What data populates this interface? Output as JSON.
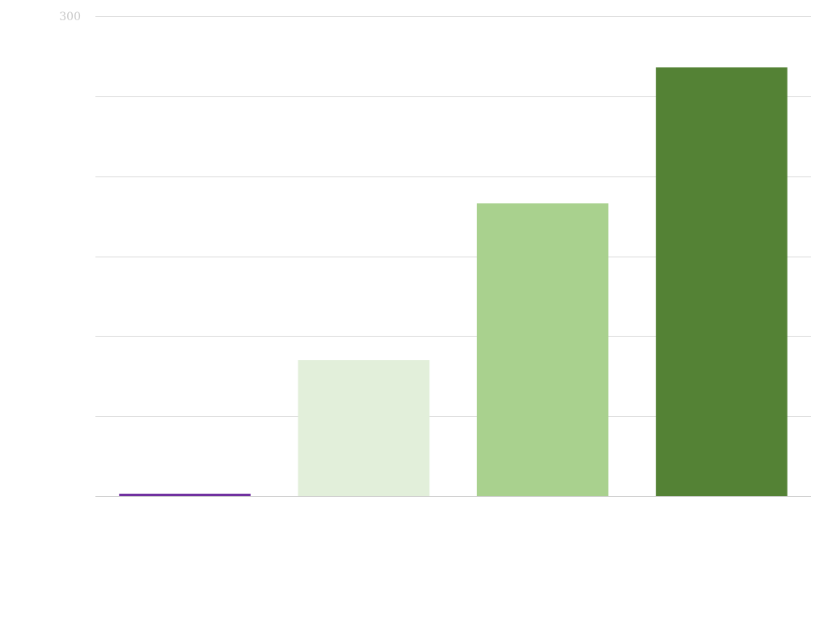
{
  "chart_data": {
    "type": "bar",
    "categories": [
      "",
      "",
      "",
      ""
    ],
    "values": [
      1.5,
      85,
      183,
      268
    ],
    "colors": [
      "#7030a0",
      "#e2efda",
      "#a9d18e",
      "#548235"
    ],
    "ylim": [
      0,
      300
    ],
    "y_ticks": [
      0,
      50,
      100,
      150,
      200,
      250,
      300
    ],
    "y_tick_labels_shown": [
      "300"
    ],
    "title": "",
    "xlabel": "",
    "ylabel": "",
    "grid": true,
    "legend": "none"
  }
}
